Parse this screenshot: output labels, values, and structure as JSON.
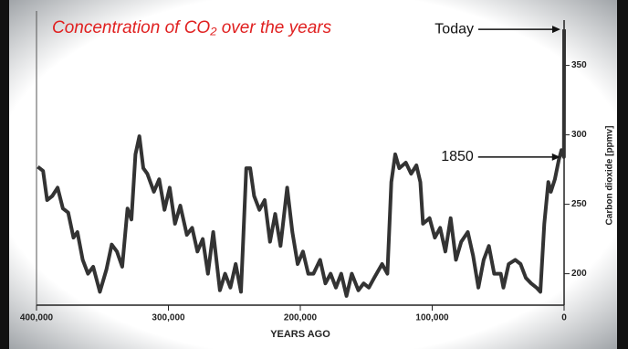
{
  "chart_data": {
    "type": "line",
    "title": "Concentration of CO₂ over the years",
    "x_label": "YEARS AGO",
    "y_label": "Carbon dioxide [ppmv]",
    "color": "#333333",
    "x": [
      399000,
      395000,
      392000,
      388000,
      384000,
      380000,
      376000,
      372000,
      369000,
      365000,
      361000,
      357000,
      352000,
      347000,
      343000,
      339000,
      335000,
      331000,
      328000,
      325000,
      322000,
      319000,
      316000,
      311000,
      307000,
      303000,
      299000,
      295000,
      291000,
      286000,
      282000,
      278000,
      274000,
      270000,
      266000,
      261000,
      257000,
      253000,
      249000,
      245000,
      241000,
      238000,
      235000,
      231000,
      227000,
      223000,
      219000,
      215000,
      210000,
      206000,
      202000,
      198000,
      194000,
      190000,
      185000,
      181000,
      177000,
      173000,
      169000,
      165000,
      161000,
      156000,
      152000,
      148000,
      144000,
      138000,
      134000,
      131000,
      128000,
      125000,
      120000,
      116000,
      112000,
      109000,
      107000,
      102000,
      98000,
      94000,
      90000,
      86000,
      82000,
      78000,
      73000,
      69000,
      65000,
      61000,
      57000,
      53000,
      48000,
      46000,
      42000,
      37000,
      33000,
      29000,
      25000,
      21000,
      18000,
      15000,
      12000,
      10000,
      7000,
      4000,
      2000,
      150,
      0
    ],
    "values": [
      277,
      274,
      253,
      256,
      262,
      247,
      244,
      226,
      230,
      210,
      200,
      205,
      187,
      203,
      221,
      216,
      205,
      247,
      239,
      286,
      299,
      276,
      272,
      259,
      268,
      246,
      262,
      236,
      249,
      228,
      233,
      216,
      225,
      200,
      230,
      188,
      200,
      190,
      207,
      187,
      276,
      276,
      256,
      246,
      253,
      223,
      243,
      220,
      262,
      230,
      207,
      216,
      200,
      200,
      210,
      193,
      200,
      190,
      200,
      184,
      200,
      188,
      193,
      190,
      197,
      207,
      200,
      266,
      286,
      276,
      280,
      272,
      278,
      266,
      236,
      240,
      226,
      233,
      216,
      240,
      210,
      223,
      230,
      213,
      190,
      210,
      220,
      200,
      200,
      190,
      207,
      210,
      207,
      197,
      193,
      190,
      187,
      236,
      266,
      259,
      268,
      282,
      289,
      284,
      376
    ],
    "xlim": [
      400000,
      0
    ],
    "xticks": [
      {
        "value": 400000,
        "label": "400,000"
      },
      {
        "value": 300000,
        "label": "300,000"
      },
      {
        "value": 200000,
        "label": "200,000"
      },
      {
        "value": 100000,
        "label": "100,000"
      },
      0
    ],
    "ylim": [
      180,
      380
    ],
    "yticks": [
      200,
      250,
      300,
      350
    ],
    "annotations": [
      {
        "text": "Today",
        "x": 0,
        "y": 376
      },
      {
        "text": "1850",
        "x": 150,
        "y": 284
      }
    ]
  }
}
